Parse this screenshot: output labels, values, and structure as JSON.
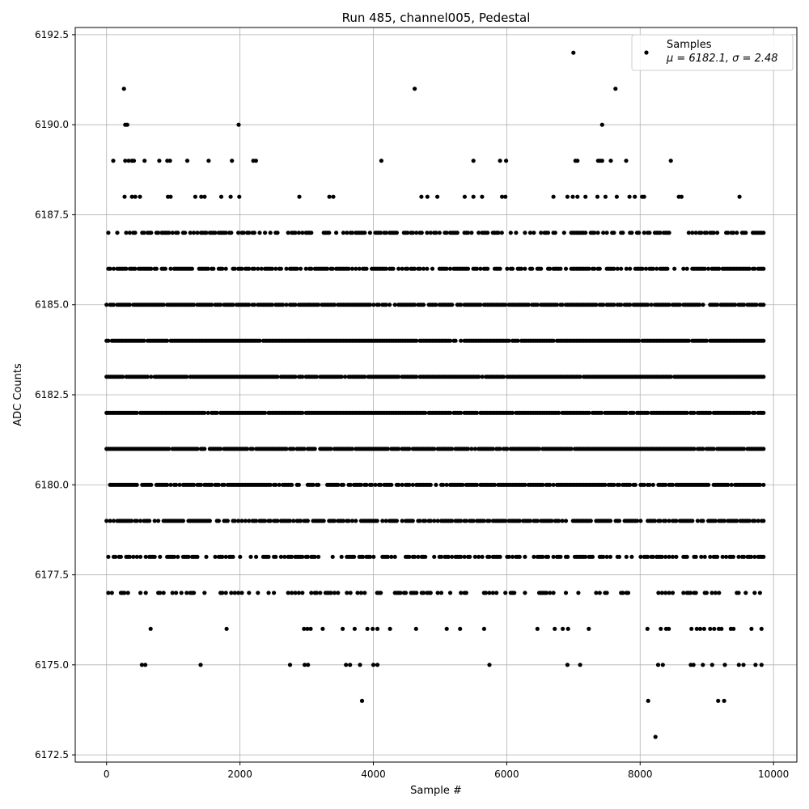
{
  "chart_data": {
    "type": "scatter",
    "title": "Run 485, channel005, Pedestal",
    "xlabel": "Sample #",
    "ylabel": "ADC Counts",
    "xlim": [
      -470,
      10350
    ],
    "ylim": [
      6172.3,
      6192.7
    ],
    "xticks": [
      0,
      2000,
      4000,
      6000,
      8000,
      10000
    ],
    "yticks": [
      6172.5,
      6175.0,
      6177.5,
      6180.0,
      6182.5,
      6185.0,
      6187.5,
      6190.0,
      6192.5
    ],
    "xtick_labels": [
      "0",
      "2000",
      "4000",
      "6000",
      "8000",
      "10000"
    ],
    "ytick_labels": [
      "6172.5",
      "6175.0",
      "6177.5",
      "6180.0",
      "6182.5",
      "6185.0",
      "6187.5",
      "6190.0",
      "6192.5"
    ],
    "grid": true,
    "legend_position": "top-right",
    "marker_color": "#000000",
    "n_samples": 9850,
    "series": [
      {
        "name": "Samples",
        "legend_stats": "μ = 6182.1, σ = 2.48",
        "points": [
          {
            "x": 260,
            "y": 6191
          },
          {
            "x": 4620,
            "y": 6191
          },
          {
            "x": 7630,
            "y": 6191
          },
          {
            "x": 7000,
            "y": 6192
          },
          {
            "x": 280,
            "y": 6190
          },
          {
            "x": 310,
            "y": 6190
          },
          {
            "x": 1980,
            "y": 6190
          },
          {
            "x": 7430,
            "y": 6190
          },
          {
            "x": 100,
            "y": 6189
          },
          {
            "x": 280,
            "y": 6189
          },
          {
            "x": 330,
            "y": 6189
          },
          {
            "x": 380,
            "y": 6189
          },
          {
            "x": 410,
            "y": 6189
          },
          {
            "x": 570,
            "y": 6189
          },
          {
            "x": 790,
            "y": 6189
          },
          {
            "x": 910,
            "y": 6189
          },
          {
            "x": 950,
            "y": 6189
          },
          {
            "x": 1210,
            "y": 6189
          },
          {
            "x": 1530,
            "y": 6189
          },
          {
            "x": 1880,
            "y": 6189
          },
          {
            "x": 2200,
            "y": 6189
          },
          {
            "x": 2240,
            "y": 6189
          },
          {
            "x": 4120,
            "y": 6189
          },
          {
            "x": 5500,
            "y": 6189
          },
          {
            "x": 5900,
            "y": 6189
          },
          {
            "x": 5990,
            "y": 6189
          },
          {
            "x": 7030,
            "y": 6189
          },
          {
            "x": 7060,
            "y": 6189
          },
          {
            "x": 7370,
            "y": 6189
          },
          {
            "x": 7400,
            "y": 6189
          },
          {
            "x": 7430,
            "y": 6189
          },
          {
            "x": 7560,
            "y": 6189
          },
          {
            "x": 7790,
            "y": 6189
          },
          {
            "x": 8460,
            "y": 6189
          },
          {
            "x": 270,
            "y": 6188
          },
          {
            "x": 380,
            "y": 6188
          },
          {
            "x": 430,
            "y": 6188
          },
          {
            "x": 500,
            "y": 6188
          },
          {
            "x": 920,
            "y": 6188
          },
          {
            "x": 960,
            "y": 6188
          },
          {
            "x": 1330,
            "y": 6188
          },
          {
            "x": 1420,
            "y": 6188
          },
          {
            "x": 1470,
            "y": 6188
          },
          {
            "x": 1720,
            "y": 6188
          },
          {
            "x": 1860,
            "y": 6188
          },
          {
            "x": 1990,
            "y": 6188
          },
          {
            "x": 2890,
            "y": 6188
          },
          {
            "x": 3340,
            "y": 6188
          },
          {
            "x": 3400,
            "y": 6188
          },
          {
            "x": 4720,
            "y": 6188
          },
          {
            "x": 4810,
            "y": 6188
          },
          {
            "x": 4960,
            "y": 6188
          },
          {
            "x": 5370,
            "y": 6188
          },
          {
            "x": 5500,
            "y": 6188
          },
          {
            "x": 5630,
            "y": 6188
          },
          {
            "x": 5930,
            "y": 6188
          },
          {
            "x": 5980,
            "y": 6188
          },
          {
            "x": 6700,
            "y": 6188
          },
          {
            "x": 6910,
            "y": 6188
          },
          {
            "x": 6990,
            "y": 6188
          },
          {
            "x": 7060,
            "y": 6188
          },
          {
            "x": 7180,
            "y": 6188
          },
          {
            "x": 7360,
            "y": 6188
          },
          {
            "x": 7480,
            "y": 6188
          },
          {
            "x": 7650,
            "y": 6188
          },
          {
            "x": 7840,
            "y": 6188
          },
          {
            "x": 7920,
            "y": 6188
          },
          {
            "x": 8030,
            "y": 6188
          },
          {
            "x": 8060,
            "y": 6188
          },
          {
            "x": 8580,
            "y": 6188
          },
          {
            "x": 8620,
            "y": 6188
          },
          {
            "x": 9490,
            "y": 6188
          },
          {
            "x": 3830,
            "y": 6174
          },
          {
            "x": 8120,
            "y": 6174
          },
          {
            "x": 9170,
            "y": 6174
          },
          {
            "x": 9260,
            "y": 6174
          },
          {
            "x": 8230,
            "y": 6173
          },
          {
            "x": 530,
            "y": 6175
          },
          {
            "x": 580,
            "y": 6175
          },
          {
            "x": 1410,
            "y": 6175
          },
          {
            "x": 2750,
            "y": 6175
          },
          {
            "x": 2970,
            "y": 6175
          },
          {
            "x": 3020,
            "y": 6175
          },
          {
            "x": 3590,
            "y": 6175
          },
          {
            "x": 3650,
            "y": 6175
          },
          {
            "x": 3800,
            "y": 6175
          },
          {
            "x": 4000,
            "y": 6175
          },
          {
            "x": 4060,
            "y": 6175
          },
          {
            "x": 5740,
            "y": 6175
          },
          {
            "x": 6910,
            "y": 6175
          },
          {
            "x": 7100,
            "y": 6175
          },
          {
            "x": 8270,
            "y": 6175
          },
          {
            "x": 8340,
            "y": 6175
          },
          {
            "x": 8760,
            "y": 6175
          },
          {
            "x": 8800,
            "y": 6175
          },
          {
            "x": 8940,
            "y": 6175
          },
          {
            "x": 9080,
            "y": 6175
          },
          {
            "x": 9270,
            "y": 6175
          },
          {
            "x": 9480,
            "y": 6175
          },
          {
            "x": 9550,
            "y": 6175
          },
          {
            "x": 9730,
            "y": 6175
          },
          {
            "x": 9820,
            "y": 6175
          },
          {
            "x": 660,
            "y": 6176
          },
          {
            "x": 1800,
            "y": 6176
          },
          {
            "x": 2960,
            "y": 6176
          },
          {
            "x": 3010,
            "y": 6176
          },
          {
            "x": 3060,
            "y": 6176
          },
          {
            "x": 3240,
            "y": 6176
          },
          {
            "x": 3540,
            "y": 6176
          },
          {
            "x": 3720,
            "y": 6176
          },
          {
            "x": 3910,
            "y": 6176
          },
          {
            "x": 3990,
            "y": 6176
          },
          {
            "x": 4060,
            "y": 6176
          },
          {
            "x": 4250,
            "y": 6176
          },
          {
            "x": 4640,
            "y": 6176
          },
          {
            "x": 5100,
            "y": 6176
          },
          {
            "x": 5300,
            "y": 6176
          },
          {
            "x": 5660,
            "y": 6176
          },
          {
            "x": 6460,
            "y": 6176
          },
          {
            "x": 6720,
            "y": 6176
          },
          {
            "x": 6840,
            "y": 6176
          },
          {
            "x": 6920,
            "y": 6176
          },
          {
            "x": 7230,
            "y": 6176
          },
          {
            "x": 8110,
            "y": 6176
          },
          {
            "x": 8310,
            "y": 6176
          },
          {
            "x": 8390,
            "y": 6176
          },
          {
            "x": 8430,
            "y": 6176
          },
          {
            "x": 8770,
            "y": 6176
          },
          {
            "x": 8850,
            "y": 6176
          },
          {
            "x": 8900,
            "y": 6176
          },
          {
            "x": 8960,
            "y": 6176
          },
          {
            "x": 9050,
            "y": 6176
          },
          {
            "x": 9110,
            "y": 6176
          },
          {
            "x": 9180,
            "y": 6176
          },
          {
            "x": 9220,
            "y": 6176
          },
          {
            "x": 9360,
            "y": 6176
          },
          {
            "x": 9400,
            "y": 6176
          },
          {
            "x": 9670,
            "y": 6176
          },
          {
            "x": 9820,
            "y": 6176
          }
        ],
        "dense_levels": [
          {
            "y": 6187,
            "density": 0.55
          },
          {
            "y": 6186,
            "density": 0.7
          },
          {
            "y": 6185,
            "density": 0.85
          },
          {
            "y": 6184,
            "density": 0.95
          },
          {
            "y": 6183,
            "density": 0.95
          },
          {
            "y": 6182,
            "density": 0.95
          },
          {
            "y": 6181,
            "density": 0.95
          },
          {
            "y": 6180,
            "density": 0.8
          },
          {
            "y": 6179,
            "density": 0.75
          },
          {
            "y": 6178,
            "density": 0.55
          },
          {
            "y": 6177,
            "density": 0.3
          }
        ]
      }
    ]
  }
}
